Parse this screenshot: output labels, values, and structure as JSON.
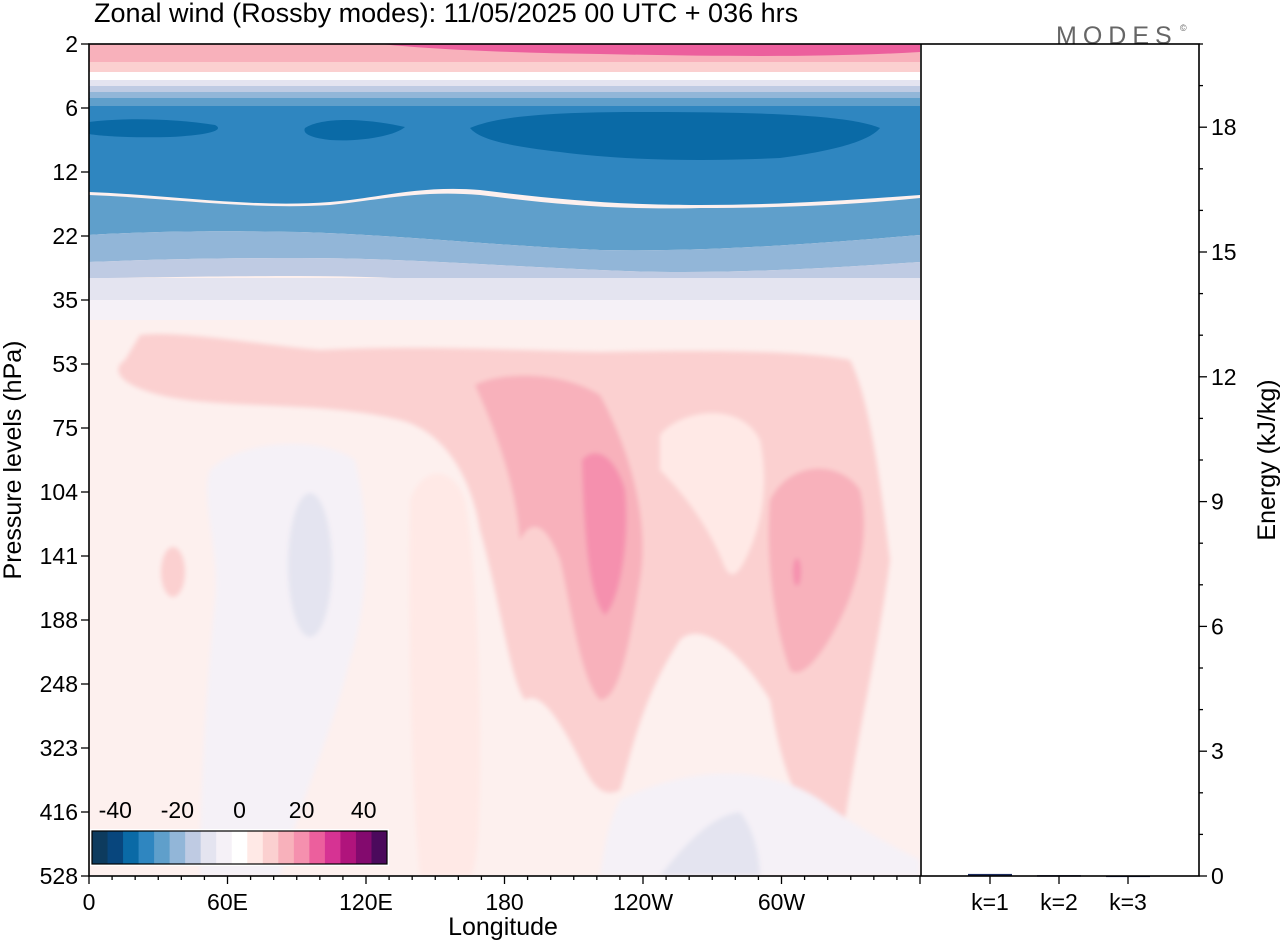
{
  "chart_data": {
    "type": "heatmap",
    "title": "Zonal wind (Rossby modes):  11/05/2025  00 UTC  + 036 hrs",
    "logo": "MODES",
    "logo_mark": "©",
    "xlabel": "Longitude",
    "ylabel": "Pressure levels (hPa)",
    "x_ticks": [
      "0",
      "60E",
      "120E",
      "180",
      "120W",
      "60W"
    ],
    "x_range": [
      0,
      360
    ],
    "y_ticks": [
      "2",
      "6",
      "12",
      "22",
      "35",
      "53",
      "75",
      "104",
      "141",
      "188",
      "248",
      "323",
      "416",
      "528"
    ],
    "y_scale": "log",
    "colorbar": {
      "tick_labels": [
        "-40",
        "-20",
        "0",
        "20",
        "40"
      ],
      "levels": [
        -45,
        -40,
        -35,
        -30,
        -25,
        -20,
        -15,
        -10,
        -5,
        0,
        5,
        10,
        15,
        20,
        25,
        30,
        35,
        40,
        45
      ],
      "colors": [
        "#0d3b5e",
        "#08467d",
        "#0a6aa6",
        "#2f86c0",
        "#5f9fcb",
        "#92b6d8",
        "#bfcbe3",
        "#e4e4f0",
        "#f5f1f7",
        "#ffffff",
        "#ffe9e6",
        "#fbd0d0",
        "#f8b1bb",
        "#f590ae",
        "#ec5f9d",
        "#d63393",
        "#b0147c",
        "#830a6e",
        "#4b0a5c"
      ]
    },
    "field_description_rows": [
      {
        "p": "2",
        "u_west": 8,
        "u_east": 28
      },
      {
        "p": "6",
        "u_west": -32,
        "u_east": -32
      },
      {
        "p": "12",
        "u_west": -25,
        "u_east": -27
      },
      {
        "p": "22",
        "u_west": -15,
        "u_east": -15
      },
      {
        "p": "35",
        "u_west": -5,
        "u_east": -5
      },
      {
        "p": "53",
        "u_west": 3,
        "u_east": 3
      }
    ],
    "energy_panel": {
      "ylabel": "Energy (kJ/kg)",
      "y_ticks": [
        "0",
        "3",
        "6",
        "9",
        "12",
        "15",
        "18"
      ],
      "ylim": [
        0,
        20
      ],
      "categories": [
        "k=1",
        "k=2",
        "k=3"
      ],
      "values": [
        0.05,
        0.02,
        0.01
      ]
    }
  }
}
